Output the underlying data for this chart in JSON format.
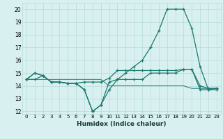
{
  "xlabel": "Humidex (Indice chaleur)",
  "bg_color": "#d8f0f0",
  "line_color": "#1a7a6e",
  "grid_color": "#b8dada",
  "xlim": [
    -0.5,
    23.5
  ],
  "ylim": [
    11.8,
    20.5
  ],
  "yticks": [
    12,
    13,
    14,
    15,
    16,
    17,
    18,
    19,
    20
  ],
  "xticks": [
    0,
    1,
    2,
    3,
    4,
    5,
    6,
    7,
    8,
    9,
    10,
    11,
    12,
    13,
    14,
    15,
    16,
    17,
    18,
    19,
    20,
    21,
    22,
    23
  ],
  "line1_x": [
    0,
    1,
    2,
    3,
    4,
    5,
    6,
    7,
    8,
    9,
    10,
    11,
    12,
    13,
    14,
    15,
    16,
    17,
    18,
    19,
    20,
    21,
    22,
    23
  ],
  "line1_y": [
    14.5,
    15.0,
    14.8,
    14.3,
    14.3,
    14.2,
    14.2,
    13.7,
    12.0,
    12.5,
    13.7,
    14.5,
    15.0,
    15.5,
    16.0,
    17.0,
    18.3,
    20.0,
    20.0,
    20.0,
    18.5,
    15.5,
    13.7,
    13.8
  ],
  "line2_x": [
    0,
    1,
    2,
    3,
    4,
    5,
    6,
    7,
    8,
    9,
    10,
    11,
    12,
    13,
    14,
    15,
    16,
    17,
    18,
    19,
    20,
    21,
    22,
    23
  ],
  "line2_y": [
    14.5,
    15.0,
    14.8,
    14.3,
    14.3,
    14.2,
    14.2,
    14.3,
    14.3,
    14.3,
    14.6,
    15.2,
    15.2,
    15.2,
    15.2,
    15.2,
    15.2,
    15.2,
    15.2,
    15.3,
    15.3,
    14.0,
    13.8,
    13.8
  ],
  "line3_x": [
    0,
    1,
    2,
    3,
    4,
    5,
    6,
    7,
    8,
    9,
    10,
    11,
    12,
    13,
    14,
    15,
    16,
    17,
    18,
    19,
    20,
    21,
    22,
    23
  ],
  "line3_y": [
    14.5,
    14.5,
    14.5,
    14.5,
    14.5,
    14.5,
    14.5,
    14.5,
    14.5,
    14.5,
    14.0,
    14.0,
    14.0,
    14.0,
    14.0,
    14.0,
    14.0,
    14.0,
    14.0,
    14.0,
    13.8,
    13.8,
    13.8,
    13.8
  ],
  "line4_x": [
    0,
    1,
    2,
    3,
    4,
    5,
    6,
    7,
    8,
    9,
    10,
    11,
    12,
    13,
    14,
    15,
    16,
    17,
    18,
    19,
    20,
    21,
    22,
    23
  ],
  "line4_y": [
    14.5,
    14.5,
    14.8,
    14.3,
    14.3,
    14.2,
    14.2,
    13.7,
    12.0,
    12.5,
    14.3,
    14.5,
    14.5,
    14.5,
    14.5,
    15.0,
    15.0,
    15.0,
    15.0,
    15.3,
    15.3,
    13.7,
    13.7,
    13.7
  ]
}
